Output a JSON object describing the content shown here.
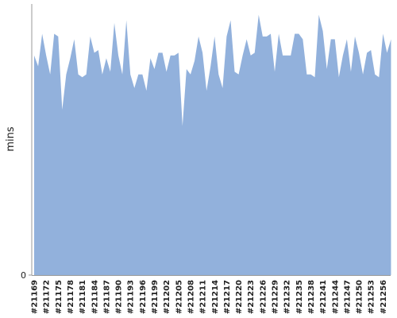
{
  "chart_data": {
    "type": "area",
    "y_label": "mins",
    "color": "#92b1dc",
    "ylim": [
      0,
      100
    ],
    "yticks": [
      0
    ],
    "categories": [
      "#21169",
      null,
      null,
      "#21172",
      null,
      null,
      "#21175",
      null,
      null,
      "#21178",
      null,
      null,
      "#21181",
      null,
      null,
      "#21184",
      null,
      null,
      "#21187",
      null,
      null,
      "#21190",
      null,
      null,
      "#21193",
      null,
      null,
      "#21196",
      null,
      null,
      "#21199",
      null,
      null,
      "#21202",
      null,
      null,
      "#21205",
      null,
      null,
      "#21208",
      null,
      null,
      "#21211",
      null,
      null,
      "#21214",
      null,
      null,
      "#21217",
      null,
      null,
      "#21220",
      null,
      null,
      "#21223",
      null,
      null,
      "#21226",
      null,
      null,
      "#21229",
      null,
      null,
      "#21232",
      null,
      null,
      "#21235",
      null,
      null,
      "#21238",
      null,
      null,
      "#21241",
      null,
      null,
      "#21244",
      null,
      null,
      "#21247",
      null,
      null,
      "#21250",
      null,
      null,
      "#21253",
      null,
      null,
      "#21256",
      null,
      null
    ],
    "values": [
      81,
      77,
      89,
      81,
      74,
      89,
      88,
      61,
      74,
      80,
      87,
      74,
      73,
      74,
      88,
      82,
      83,
      74,
      80,
      75,
      93,
      81,
      74,
      94,
      74,
      69,
      74,
      74,
      68,
      80,
      76,
      82,
      82,
      75,
      81,
      81,
      82,
      55,
      76,
      74,
      79,
      88,
      82,
      68,
      77,
      88,
      74,
      69,
      88,
      94,
      75,
      74,
      81,
      87,
      81,
      82,
      96,
      88,
      88,
      89,
      75,
      89,
      81,
      81,
      81,
      89,
      89,
      87,
      74,
      74,
      73,
      96,
      90,
      76,
      87,
      87,
      73,
      81,
      87,
      75,
      88,
      82,
      74,
      82,
      83,
      74,
      73,
      89,
      82,
      87
    ]
  }
}
